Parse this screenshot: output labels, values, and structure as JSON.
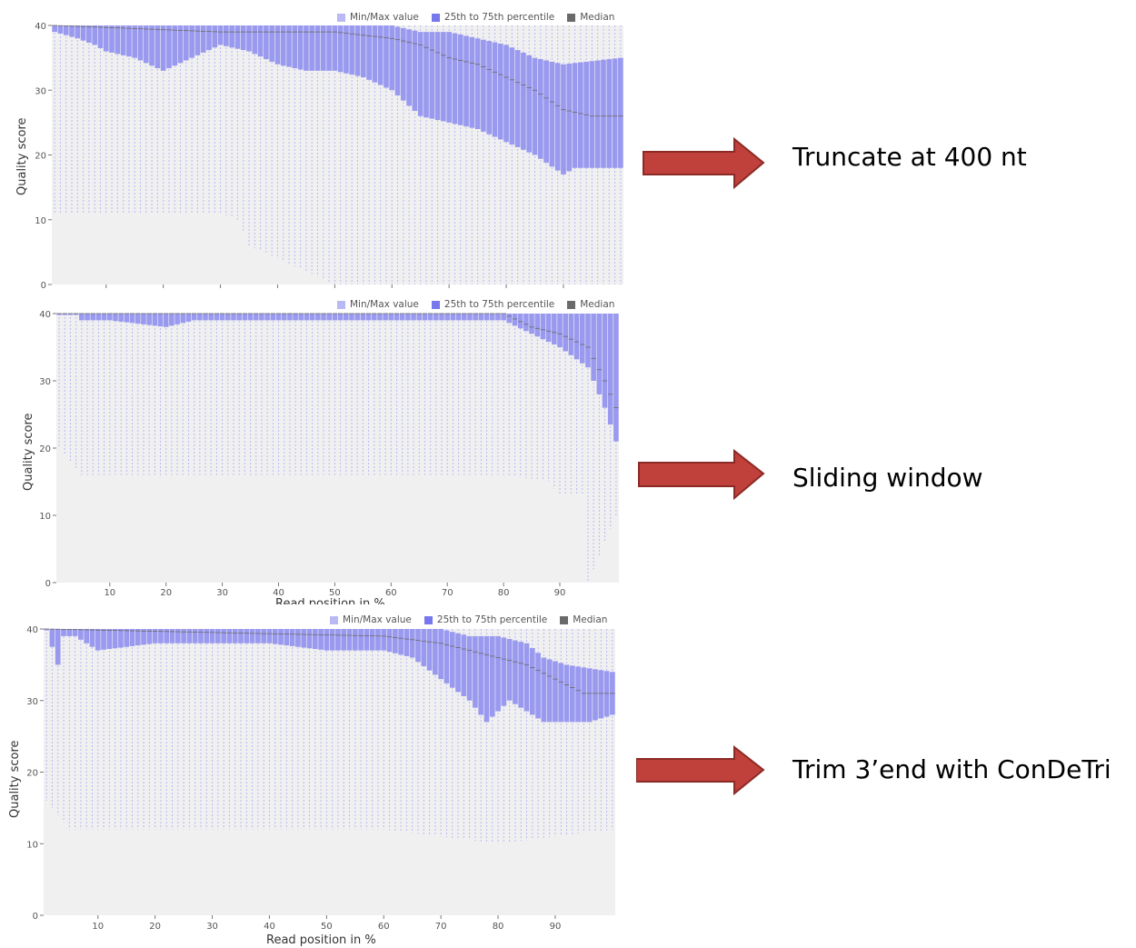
{
  "colors": {
    "minmax": "#b9b9f4",
    "iqr": "#9999f0",
    "median": "#6a6a6a",
    "plot_bg": "#f0f0f0",
    "arrow_fill": "#c0403b",
    "arrow_stroke": "#8c2a25"
  },
  "legend": {
    "minmax": "Min/Max value",
    "iqr": "25th to 75th percentile",
    "median": "Median"
  },
  "annotations": [
    {
      "text": "Truncate at 400 nt"
    },
    {
      "text": "Sliding window"
    },
    {
      "text": "Trim 3’end with ConDeTri"
    }
  ],
  "chart_data": [
    {
      "type": "boxplot",
      "ylabel": "Quality score",
      "xlabel": "",
      "ylim": [
        0,
        40
      ],
      "yticks": [
        0,
        10,
        20,
        30,
        40
      ],
      "xticks": [
        "10",
        "20",
        "30",
        "40",
        "50",
        "60",
        "70",
        "80",
        "90"
      ],
      "x": "Read position in % (1-100)",
      "q1_profile": {
        "x": [
          1,
          5,
          8,
          10,
          15,
          20,
          25,
          30,
          35,
          40,
          45,
          50,
          55,
          60,
          65,
          70,
          75,
          80,
          85,
          90,
          92,
          95,
          100
        ],
        "y": [
          39,
          38,
          37,
          36,
          35,
          33,
          35,
          37,
          36,
          34,
          33,
          33,
          32,
          30,
          26,
          25,
          24,
          22,
          20,
          17,
          18,
          18,
          18
        ]
      },
      "q3_profile": {
        "x": [
          1,
          10,
          40,
          60,
          65,
          70,
          75,
          80,
          85,
          90,
          100
        ],
        "y": [
          40,
          40,
          40,
          40,
          39,
          39,
          38,
          37,
          35,
          34,
          35
        ]
      },
      "median_profile": {
        "x": [
          1,
          30,
          50,
          60,
          65,
          70,
          75,
          80,
          85,
          90,
          95,
          100
        ],
        "y": [
          40,
          39,
          39,
          38,
          37,
          35,
          34,
          32,
          30,
          27,
          26,
          26
        ]
      },
      "min_profile": {
        "x": [
          1,
          30,
          33,
          35,
          50,
          60,
          100
        ],
        "y": [
          11,
          11,
          10,
          6,
          0,
          0,
          0
        ]
      },
      "max_value": 40
    },
    {
      "type": "boxplot",
      "ylabel": "Quality score",
      "xlabel": "Read position in %",
      "ylim": [
        0,
        40
      ],
      "yticks": [
        0,
        10,
        20,
        30,
        40
      ],
      "xticks": [
        "10",
        "20",
        "30",
        "40",
        "50",
        "60",
        "70",
        "80",
        "90"
      ],
      "x": "Read position in % (1-100)",
      "q1_profile": {
        "x": [
          1,
          4,
          5,
          10,
          20,
          25,
          40,
          60,
          80,
          85,
          90,
          95,
          98,
          100
        ],
        "y": [
          40,
          40,
          39,
          39,
          38,
          39,
          39,
          39,
          39,
          37,
          35,
          32,
          26,
          21
        ]
      },
      "q3_profile": {
        "x": [
          1,
          100
        ],
        "y": [
          40,
          40
        ]
      },
      "median_profile": {
        "x": [
          1,
          80,
          85,
          90,
          95,
          98,
          100
        ],
        "y": [
          40,
          40,
          38,
          37,
          35,
          30,
          26
        ]
      },
      "min_profile": {
        "x": [
          1,
          3,
          5,
          20,
          40,
          60,
          80,
          88,
          90,
          94,
          95,
          100
        ],
        "y": [
          20,
          18,
          16,
          16,
          16,
          16,
          16,
          15,
          13,
          13,
          0,
          10
        ]
      },
      "max_value": 40
    },
    {
      "type": "boxplot",
      "ylabel": "Quality score",
      "xlabel": "Read position in %",
      "ylim": [
        0,
        40
      ],
      "yticks": [
        0,
        10,
        20,
        30,
        40
      ],
      "xticks": [
        "10",
        "20",
        "30",
        "40",
        "50",
        "60",
        "70",
        "80",
        "90"
      ],
      "x": "Read position in % (1-100)",
      "q1_profile": {
        "x": [
          1,
          3,
          4,
          6,
          10,
          20,
          30,
          40,
          50,
          60,
          65,
          70,
          75,
          78,
          82,
          88,
          92,
          96,
          100
        ],
        "y": [
          40,
          35,
          39,
          39,
          37,
          38,
          38,
          38,
          37,
          37,
          36,
          33,
          30,
          27,
          30,
          27,
          27,
          27,
          28
        ]
      },
      "q3_profile": {
        "x": [
          1,
          70,
          75,
          80,
          85,
          88,
          92,
          100
        ],
        "y": [
          40,
          40,
          39,
          39,
          38,
          36,
          35,
          34
        ]
      },
      "median_profile": {
        "x": [
          1,
          60,
          70,
          75,
          80,
          85,
          90,
          95,
          100
        ],
        "y": [
          40,
          39,
          38,
          37,
          36,
          35,
          33,
          31,
          31
        ]
      },
      "min_profile": {
        "x": [
          1,
          3,
          5,
          20,
          40,
          60,
          70,
          80,
          90,
          100
        ],
        "y": [
          16,
          14,
          12,
          12,
          12,
          12,
          11,
          10,
          11,
          12
        ]
      },
      "max_value": 40
    }
  ]
}
